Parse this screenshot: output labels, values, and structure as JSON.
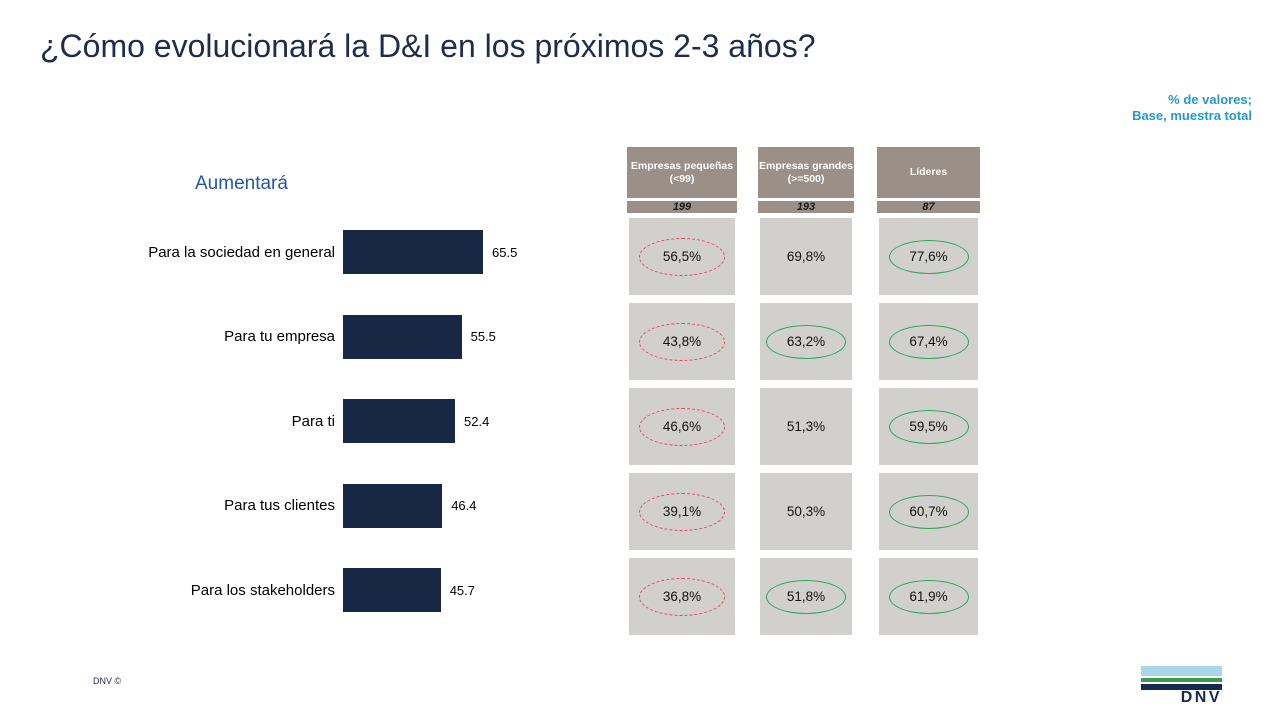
{
  "slide": {
    "title": "¿Cómo evolucionará la D&I en los próximos 2-3 años?",
    "annotation_line1": "% de valores;",
    "annotation_line2": "Base, muestra total",
    "footer_copyright": "DNV ©",
    "logo_text": "DNV"
  },
  "chart_data": {
    "type": "bar",
    "orientation": "horizontal",
    "title": "Aumentará",
    "categories": [
      "Para la sociedad en general",
      "Para tu empresa",
      "Para ti",
      "Para tus clientes",
      "Para los stakeholders"
    ],
    "values": [
      65.5,
      55.5,
      52.4,
      46.4,
      45.7
    ],
    "value_labels": [
      "65.5",
      "55.5",
      "52.4",
      "46.4",
      "45.7"
    ],
    "xlim": [
      0,
      100
    ],
    "colors": {
      "bar": "#172744",
      "highlight_low": "#E4485E",
      "highlight_high": "#2AA55C",
      "header_bg": "#9A9088",
      "cell_bg": "#D2D0CD"
    },
    "segment_table": {
      "columns": [
        {
          "title": "Empresas pequeñas",
          "subtitle": "(<99)",
          "base": "199"
        },
        {
          "title": "Empresas grandes",
          "subtitle": "(>=500)",
          "base": "193"
        },
        {
          "title": "Líderes",
          "subtitle": "",
          "base": "87"
        }
      ],
      "rows": [
        [
          {
            "value": "56,5%",
            "highlight": "red-dashed"
          },
          {
            "value": "69,8%",
            "highlight": "none"
          },
          {
            "value": "77,6%",
            "highlight": "green"
          }
        ],
        [
          {
            "value": "43,8%",
            "highlight": "red-dashed"
          },
          {
            "value": "63,2%",
            "highlight": "green"
          },
          {
            "value": "67,4%",
            "highlight": "green"
          }
        ],
        [
          {
            "value": "46,6%",
            "highlight": "red-dashed"
          },
          {
            "value": "51,3%",
            "highlight": "none"
          },
          {
            "value": "59,5%",
            "highlight": "green"
          }
        ],
        [
          {
            "value": "39,1%",
            "highlight": "red-dashed"
          },
          {
            "value": "50,3%",
            "highlight": "none"
          },
          {
            "value": "60,7%",
            "highlight": "green"
          }
        ],
        [
          {
            "value": "36,8%",
            "highlight": "red-dashed"
          },
          {
            "value": "51,8%",
            "highlight": "green"
          },
          {
            "value": "61,9%",
            "highlight": "green"
          }
        ]
      ]
    }
  }
}
